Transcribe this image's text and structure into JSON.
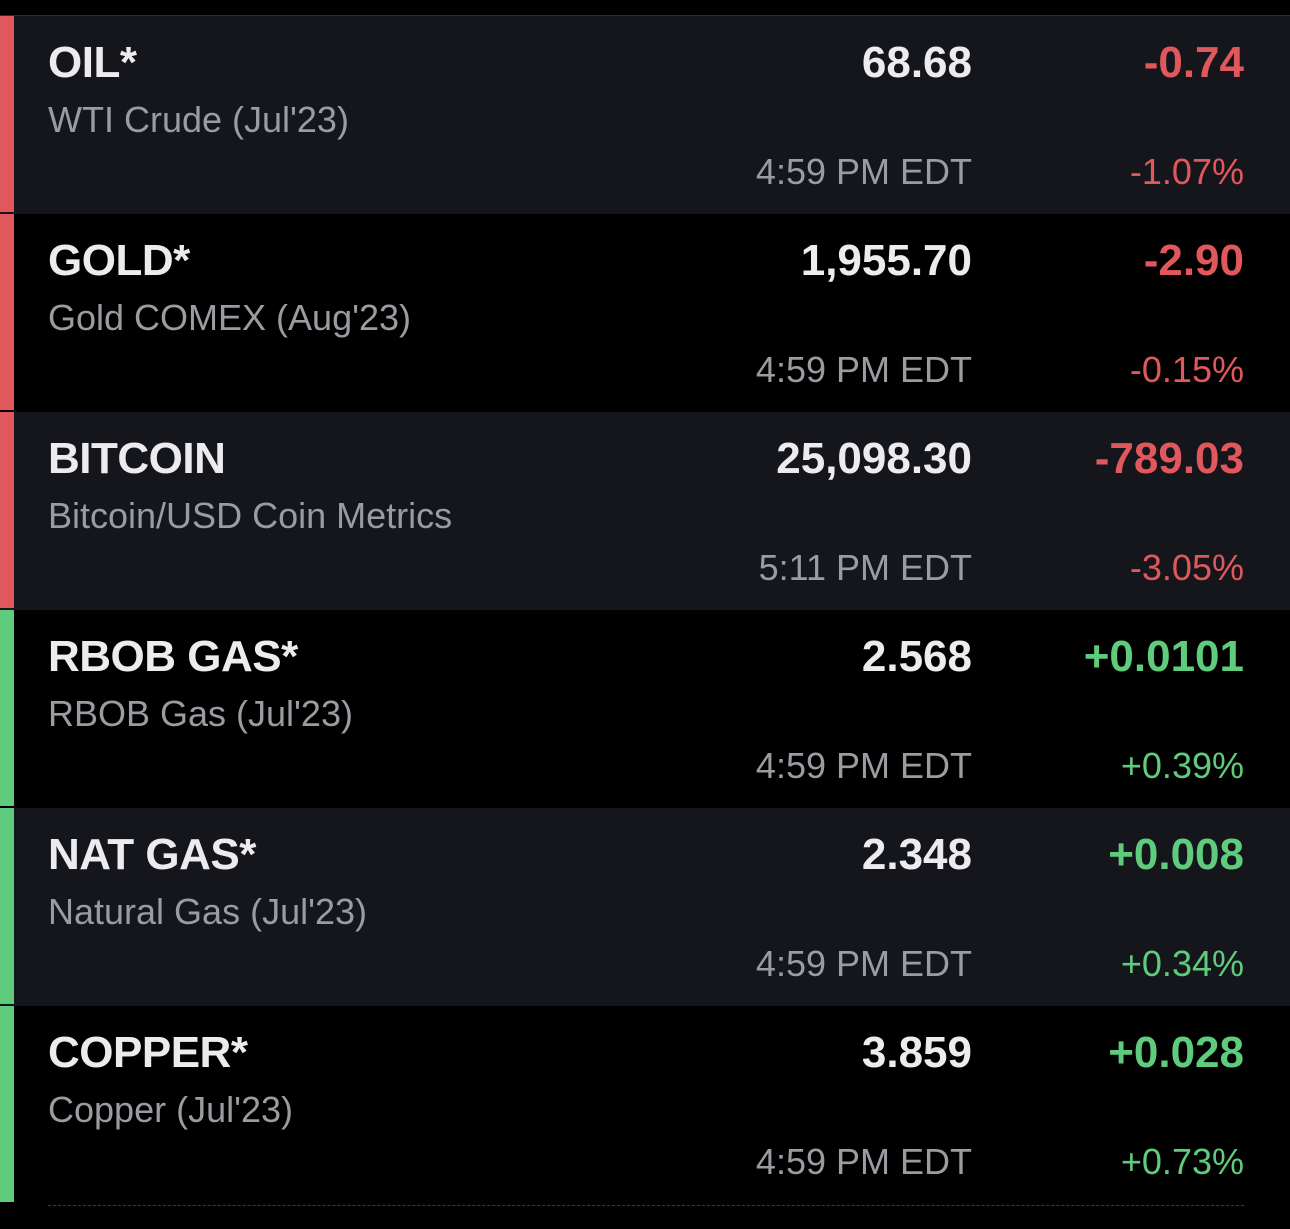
{
  "colors": {
    "negative": "#e0585c",
    "positive": "#5fcb7c",
    "row_dark": "#14161b",
    "row_black": "#000000"
  },
  "quotes": [
    {
      "symbol": "OIL*",
      "description": "WTI Crude (Jul'23)",
      "price": "68.68",
      "change": "-0.74",
      "change_pct": "-1.07%",
      "time": "4:59 PM EDT",
      "direction": "down"
    },
    {
      "symbol": "GOLD*",
      "description": "Gold COMEX (Aug'23)",
      "price": "1,955.70",
      "change": "-2.90",
      "change_pct": "-0.15%",
      "time": "4:59 PM EDT",
      "direction": "down"
    },
    {
      "symbol": "BITCOIN",
      "description": "Bitcoin/USD Coin Metrics",
      "price": "25,098.30",
      "change": "-789.03",
      "change_pct": "-3.05%",
      "time": "5:11 PM EDT",
      "direction": "down"
    },
    {
      "symbol": "RBOB GAS*",
      "description": "RBOB Gas (Jul'23)",
      "price": "2.568",
      "change": "+0.0101",
      "change_pct": "+0.39%",
      "time": "4:59 PM EDT",
      "direction": "up"
    },
    {
      "symbol": "NAT GAS*",
      "description": "Natural Gas (Jul'23)",
      "price": "2.348",
      "change": "+0.008",
      "change_pct": "+0.34%",
      "time": "4:59 PM EDT",
      "direction": "up"
    },
    {
      "symbol": "COPPER*",
      "description": "Copper (Jul'23)",
      "price": "3.859",
      "change": "+0.028",
      "change_pct": "+0.73%",
      "time": "4:59 PM EDT",
      "direction": "up"
    }
  ]
}
